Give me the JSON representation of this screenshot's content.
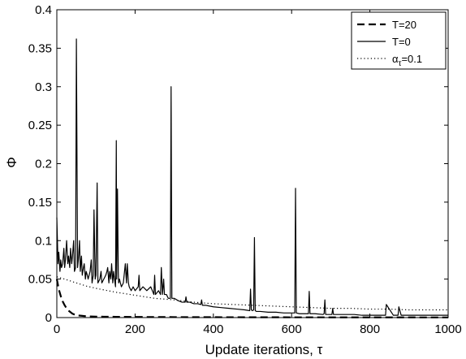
{
  "chart_data": {
    "type": "line",
    "title": "",
    "xlabel": "Update iterations, τ",
    "ylabel": "Φ",
    "xlim": [
      0,
      1000
    ],
    "ylim": [
      0,
      0.4
    ],
    "xticks": [
      "0",
      "200",
      "400",
      "600",
      "800",
      "1000"
    ],
    "yticks": [
      "0",
      "0.05",
      "0.1",
      "0.15",
      "0.2",
      "0.25",
      "0.3",
      "0.35",
      "0.4"
    ],
    "grid": false,
    "legend_position": "top-right",
    "series": [
      {
        "name": "T=20",
        "style": "dashed",
        "color": "#000000",
        "x": [
          0,
          3,
          6,
          10,
          15,
          20,
          25,
          30,
          35,
          40,
          50,
          60,
          70,
          80,
          100,
          150,
          200,
          300,
          400,
          500,
          700,
          1000
        ],
        "y": [
          0.05,
          0.042,
          0.035,
          0.028,
          0.021,
          0.016,
          0.012,
          0.009,
          0.007,
          0.005,
          0.003,
          0.0025,
          0.002,
          0.0015,
          0.0012,
          0.001,
          0.0008,
          0.0006,
          0.0005,
          0.0004,
          0.0003,
          0.0002
        ]
      },
      {
        "name": "T=0",
        "style": "solid",
        "color": "#000000",
        "x": [
          0,
          3,
          5,
          8,
          10,
          12,
          15,
          18,
          20,
          22,
          25,
          28,
          30,
          33,
          35,
          38,
          40,
          43,
          45,
          48,
          50,
          53,
          55,
          58,
          60,
          63,
          65,
          68,
          70,
          73,
          75,
          78,
          80,
          85,
          88,
          90,
          93,
          95,
          98,
          100,
          103,
          105,
          110,
          113,
          115,
          120,
          125,
          128,
          130,
          133,
          135,
          138,
          140,
          143,
          145,
          150,
          152,
          153,
          155,
          157,
          158,
          160,
          165,
          170,
          175,
          178,
          180,
          183,
          185,
          190,
          195,
          200,
          208,
          210,
          212,
          220,
          230,
          240,
          248,
          250,
          252,
          260,
          265,
          267,
          270,
          273,
          275,
          280,
          285,
          290,
          292,
          294,
          300,
          310,
          320,
          328,
          330,
          332,
          340,
          350,
          360,
          368,
          370,
          372,
          380,
          400,
          420,
          440,
          460,
          480,
          493,
          495,
          497,
          500,
          503,
          505,
          507,
          510,
          520,
          540,
          560,
          580,
          600,
          608,
          610,
          612,
          620,
          640,
          643,
          645,
          647,
          660,
          680,
          683,
          685,
          687,
          700,
          703,
          705,
          707,
          720,
          740,
          760,
          780,
          800,
          820,
          838,
          840,
          842,
          860,
          870,
          872,
          874,
          880,
          900,
          920,
          940,
          960,
          980,
          1000
        ],
        "y": [
          0.13,
          0.07,
          0.085,
          0.06,
          0.075,
          0.065,
          0.07,
          0.09,
          0.065,
          0.075,
          0.1,
          0.07,
          0.08,
          0.065,
          0.09,
          0.07,
          0.08,
          0.1,
          0.06,
          0.065,
          0.362,
          0.065,
          0.075,
          0.1,
          0.06,
          0.08,
          0.055,
          0.065,
          0.07,
          0.05,
          0.06,
          0.055,
          0.05,
          0.06,
          0.075,
          0.045,
          0.055,
          0.14,
          0.05,
          0.055,
          0.175,
          0.045,
          0.05,
          0.06,
          0.045,
          0.05,
          0.055,
          0.06,
          0.065,
          0.045,
          0.06,
          0.05,
          0.07,
          0.045,
          0.06,
          0.04,
          0.23,
          0.05,
          0.167,
          0.06,
          0.045,
          0.05,
          0.04,
          0.045,
          0.07,
          0.045,
          0.07,
          0.045,
          0.04,
          0.035,
          0.04,
          0.035,
          0.04,
          0.055,
          0.035,
          0.04,
          0.035,
          0.04,
          0.03,
          0.055,
          0.03,
          0.035,
          0.03,
          0.065,
          0.03,
          0.05,
          0.03,
          0.03,
          0.025,
          0.025,
          0.3,
          0.025,
          0.025,
          0.022,
          0.02,
          0.02,
          0.027,
          0.02,
          0.02,
          0.018,
          0.018,
          0.017,
          0.023,
          0.016,
          0.016,
          0.014,
          0.013,
          0.012,
          0.011,
          0.01,
          0.009,
          0.037,
          0.01,
          0.009,
          0.01,
          0.104,
          0.009,
          0.008,
          0.008,
          0.007,
          0.007,
          0.006,
          0.006,
          0.006,
          0.168,
          0.006,
          0.005,
          0.005,
          0.005,
          0.034,
          0.005,
          0.005,
          0.004,
          0.005,
          0.023,
          0.004,
          0.004,
          0.004,
          0.012,
          0.004,
          0.004,
          0.004,
          0.004,
          0.003,
          0.003,
          0.003,
          0.003,
          0.003,
          0.017,
          0.003,
          0.003,
          0.003,
          0.014,
          0.003,
          0.003,
          0.003,
          0.003,
          0.003,
          0.003,
          0.003
        ]
      },
      {
        "name": "α_τ=0.1",
        "style": "dotted",
        "color": "#000000",
        "x": [
          0,
          20,
          50,
          75,
          100,
          150,
          200,
          250,
          300,
          350,
          400,
          450,
          500,
          550,
          600,
          650,
          700,
          750,
          800,
          850,
          900,
          950,
          1000
        ],
        "y": [
          0.053,
          0.05,
          0.045,
          0.041,
          0.038,
          0.033,
          0.029,
          0.025,
          0.023,
          0.02,
          0.018,
          0.017,
          0.016,
          0.015,
          0.014,
          0.013,
          0.012,
          0.012,
          0.011,
          0.011,
          0.01,
          0.01,
          0.01
        ]
      }
    ],
    "legend": [
      {
        "label_main": "T=20",
        "label_sub": "",
        "label_rest": ""
      },
      {
        "label_main": "T=0",
        "label_sub": "",
        "label_rest": ""
      },
      {
        "label_main": "α",
        "label_sub": "τ",
        "label_rest": "=0.1"
      }
    ]
  }
}
